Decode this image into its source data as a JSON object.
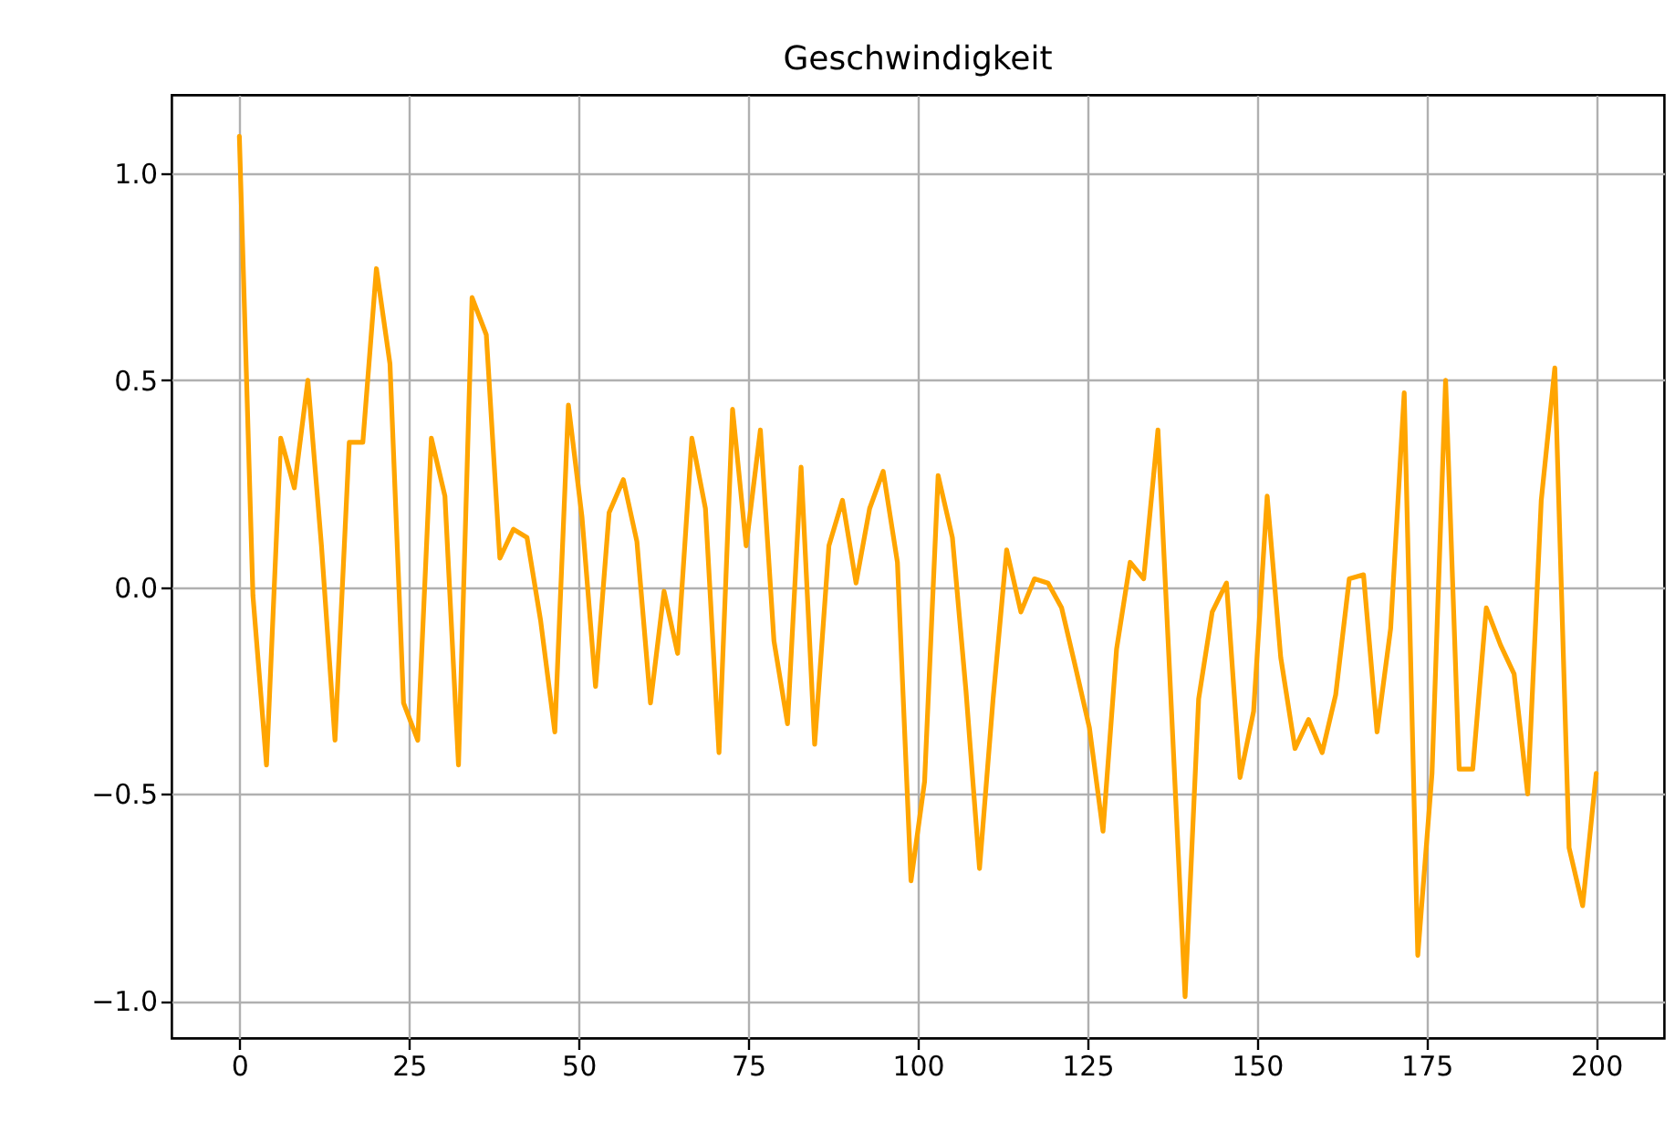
{
  "chart_data": {
    "type": "line",
    "title": "Geschwindigkeit",
    "x": [
      0,
      2.0,
      4.0,
      6.1,
      8.1,
      10.1,
      12.1,
      14.1,
      16.2,
      18.2,
      20.2,
      22.2,
      24.2,
      26.3,
      28.3,
      30.3,
      32.3,
      34.3,
      36.4,
      38.4,
      40.4,
      42.4,
      44.4,
      46.5,
      48.5,
      50.5,
      52.5,
      54.5,
      56.6,
      58.6,
      60.6,
      62.6,
      64.6,
      66.7,
      68.7,
      70.7,
      72.7,
      74.7,
      76.8,
      78.8,
      80.8,
      82.8,
      84.8,
      86.9,
      88.9,
      90.9,
      92.9,
      94.9,
      97.0,
      99.0,
      101.0,
      103.0,
      105.1,
      107.1,
      109.1,
      111.1,
      113.1,
      115.2,
      117.2,
      119.2,
      121.2,
      123.2,
      125.3,
      127.3,
      129.3,
      131.3,
      133.3,
      135.4,
      137.4,
      139.4,
      141.4,
      143.4,
      145.5,
      147.5,
      149.5,
      151.5,
      153.5,
      155.6,
      157.6,
      159.6,
      161.6,
      163.6,
      165.7,
      167.7,
      169.7,
      171.7,
      173.7,
      175.8,
      177.8,
      179.8,
      181.8,
      183.8,
      185.9,
      187.9,
      189.9,
      191.9,
      193.9,
      196.0,
      198.0,
      200
    ],
    "series": [
      {
        "color": "#ffa500",
        "values": [
          1.09,
          -0.02,
          -0.43,
          0.36,
          0.24,
          0.5,
          0.1,
          -0.37,
          0.35,
          0.35,
          0.77,
          0.54,
          -0.28,
          -0.37,
          0.36,
          0.22,
          -0.43,
          0.7,
          0.61,
          0.07,
          0.14,
          0.12,
          -0.08,
          -0.35,
          0.44,
          0.17,
          -0.24,
          0.18,
          0.26,
          0.11,
          -0.28,
          -0.01,
          -0.16,
          0.36,
          0.19,
          -0.4,
          0.43,
          0.1,
          0.38,
          -0.13,
          -0.33,
          0.29,
          -0.38,
          0.1,
          0.21,
          0.01,
          0.19,
          0.28,
          0.06,
          -0.71,
          -0.47,
          0.27,
          0.12,
          -0.25,
          -0.68,
          -0.27,
          0.09,
          -0.06,
          0.02,
          0.01,
          -0.05,
          -0.19,
          -0.34,
          -0.59,
          -0.15,
          0.06,
          0.02,
          0.38,
          -0.3,
          -0.99,
          -0.27,
          -0.06,
          0.01,
          -0.46,
          -0.3,
          0.22,
          -0.17,
          -0.39,
          -0.32,
          -0.4,
          -0.26,
          0.02,
          0.03,
          -0.35,
          -0.1,
          0.47,
          -0.89,
          -0.45,
          0.5,
          -0.44,
          -0.44,
          -0.05,
          -0.14,
          -0.21,
          -0.5,
          0.21,
          0.53,
          -0.63,
          -0.77,
          -0.45
        ]
      }
    ],
    "xlim": [
      -10,
      210
    ],
    "ylim": [
      -1.09,
      1.19
    ],
    "xticks": [
      0,
      25,
      50,
      75,
      100,
      125,
      150,
      175,
      200
    ],
    "yticks": [
      {
        "value": -1,
        "label": "−1.0"
      },
      {
        "value": -0.5,
        "label": "−0.5"
      },
      {
        "value": 0,
        "label": "0.0"
      },
      {
        "value": 0.5,
        "label": "0.5"
      },
      {
        "value": 1,
        "label": "1.0"
      }
    ],
    "grid": true
  }
}
